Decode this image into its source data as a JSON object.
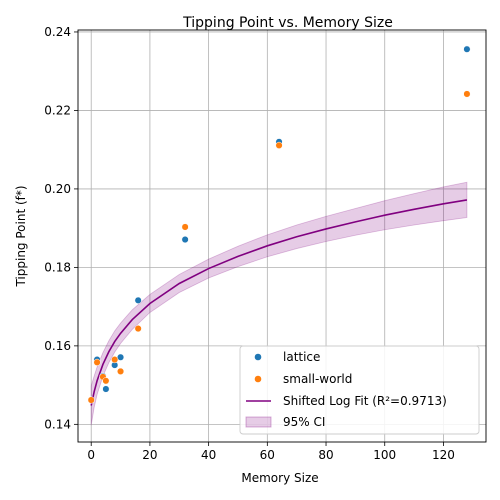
{
  "chart_data": {
    "type": "scatter",
    "title": "Tipping Point vs. Memory Size",
    "xlabel": "Memory Size",
    "ylabel": "Tipping Point (f*)",
    "xlim": [
      -4.5,
      134.5
    ],
    "ylim": [
      0.1355,
      0.2405
    ],
    "x_ticks": [
      0,
      20,
      40,
      60,
      80,
      100,
      120
    ],
    "y_ticks": [
      0.14,
      0.16,
      0.18,
      0.2,
      0.22,
      0.24
    ],
    "x_tick_labels": [
      "0",
      "20",
      "40",
      "60",
      "80",
      "100",
      "120"
    ],
    "y_tick_labels": [
      "0.14",
      "0.16",
      "0.18",
      "0.20",
      "0.22",
      "0.24"
    ],
    "grid": true,
    "legend_position": "lower-right",
    "series": [
      {
        "name": "lattice",
        "color": "#1f77b4",
        "points": [
          {
            "x": 2,
            "y": 0.1565
          },
          {
            "x": 4,
            "y": 0.1523
          },
          {
            "x": 5,
            "y": 0.149
          },
          {
            "x": 8,
            "y": 0.1551
          },
          {
            "x": 10,
            "y": 0.1571
          },
          {
            "x": 16,
            "y": 0.1716
          },
          {
            "x": 32,
            "y": 0.1871
          },
          {
            "x": 64,
            "y": 0.212
          },
          {
            "x": 128,
            "y": 0.2356
          }
        ]
      },
      {
        "name": "small-world",
        "color": "#ff7f0e",
        "points": [
          {
            "x": 0,
            "y": 0.1462
          },
          {
            "x": 2,
            "y": 0.1558
          },
          {
            "x": 4,
            "y": 0.1521
          },
          {
            "x": 5,
            "y": 0.1511
          },
          {
            "x": 8,
            "y": 0.1565
          },
          {
            "x": 10,
            "y": 0.1535
          },
          {
            "x": 16,
            "y": 0.1644
          },
          {
            "x": 32,
            "y": 0.1903
          },
          {
            "x": 64,
            "y": 0.2111
          },
          {
            "x": 128,
            "y": 0.2242
          }
        ]
      }
    ],
    "fit": {
      "name": "Shifted Log Fit (R²=0.9713)",
      "color": "#800080",
      "x": [
        0,
        1,
        2,
        4,
        6,
        8,
        10,
        14,
        20,
        30,
        40,
        50,
        60,
        70,
        80,
        90,
        100,
        110,
        120,
        128
      ],
      "y": [
        0.1448,
        0.1483,
        0.1511,
        0.1553,
        0.1585,
        0.1611,
        0.1632,
        0.1667,
        0.1708,
        0.1759,
        0.1797,
        0.1828,
        0.1855,
        0.1878,
        0.1898,
        0.1916,
        0.1933,
        0.1948,
        0.1962,
        0.1972
      ]
    },
    "ci": {
      "name": "95% CI",
      "color": "#800080",
      "lower": [
        0.1398,
        0.1443,
        0.1476,
        0.1523,
        0.1557,
        0.1584,
        0.1606,
        0.1642,
        0.1685,
        0.1736,
        0.1773,
        0.1802,
        0.1827,
        0.1848,
        0.1866,
        0.1882,
        0.1896,
        0.1908,
        0.1919,
        0.1927
      ],
      "upper": [
        0.1498,
        0.1523,
        0.1546,
        0.1583,
        0.1613,
        0.1638,
        0.1658,
        0.1692,
        0.1731,
        0.1782,
        0.1821,
        0.1854,
        0.1883,
        0.1908,
        0.193,
        0.195,
        0.197,
        0.1988,
        0.2005,
        0.2017
      ]
    }
  }
}
